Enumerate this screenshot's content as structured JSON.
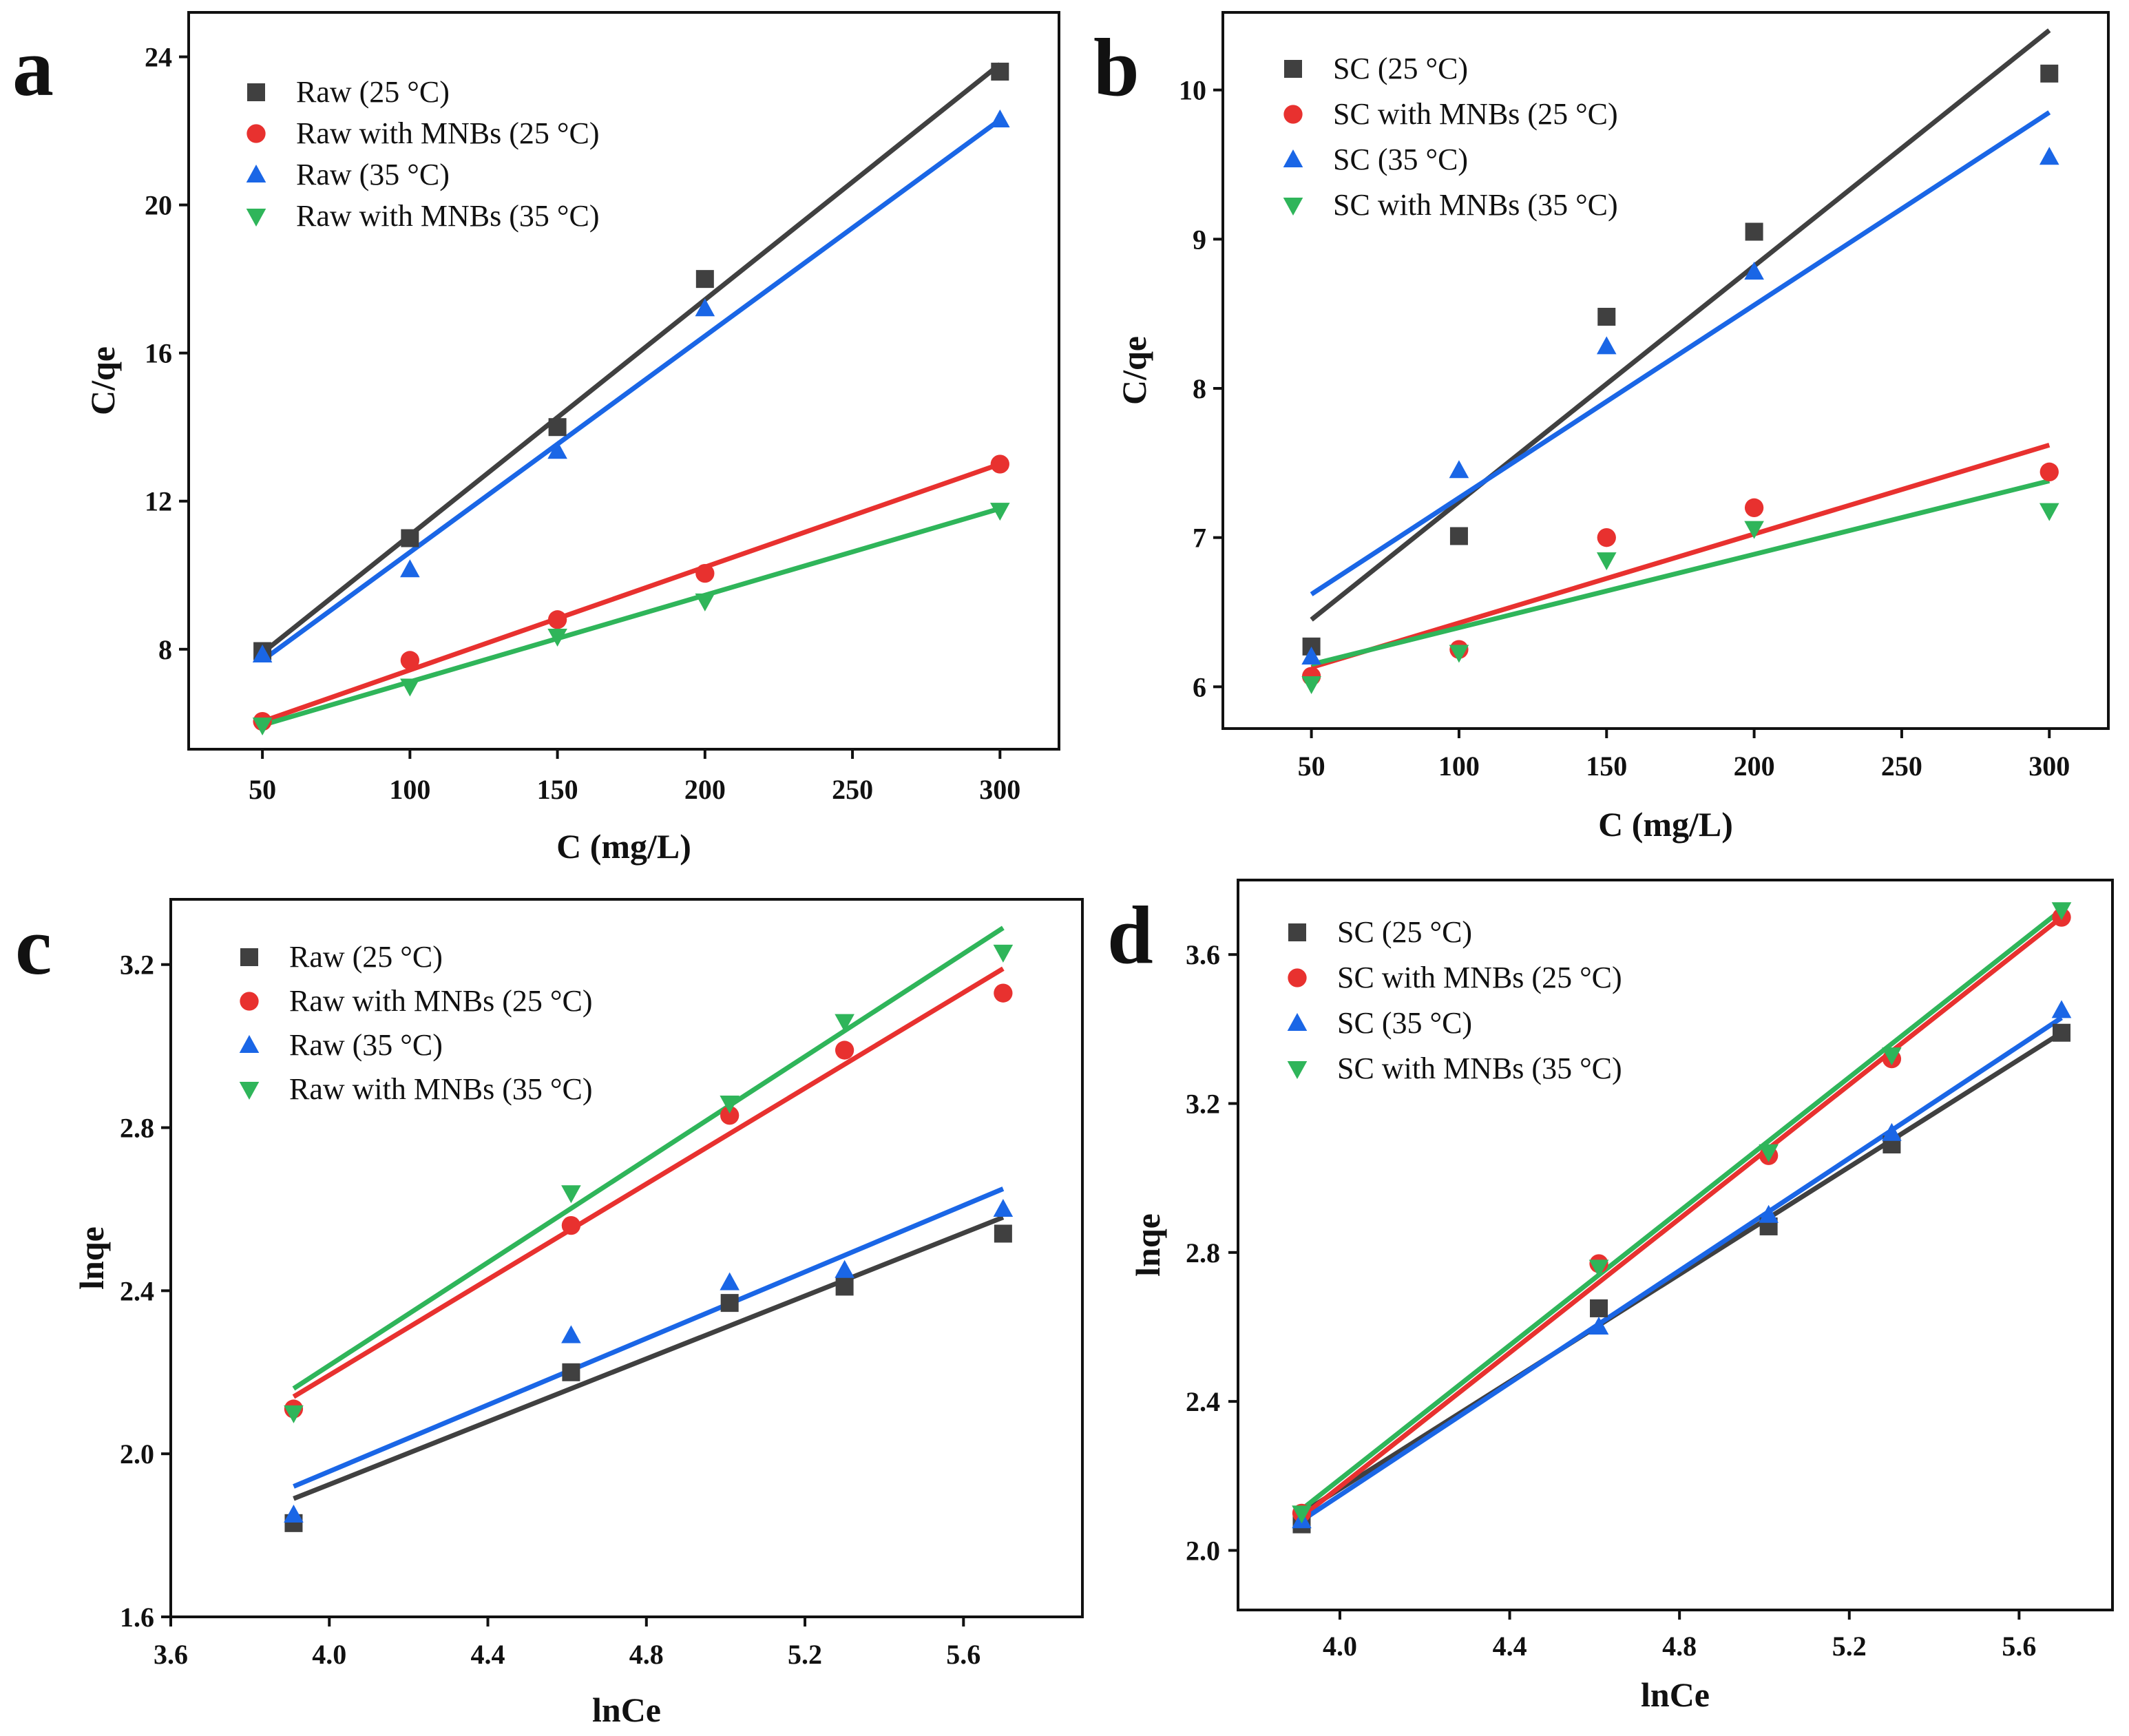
{
  "colors": {
    "black": "#404040",
    "red": "#e8312f",
    "blue": "#1a66e6",
    "green": "#2fb55a"
  },
  "chart_data": [
    {
      "panel": "a",
      "type": "scatter",
      "xlabel": "C (mg/L)",
      "ylabel": "C/qe",
      "xlim": [
        25,
        320
      ],
      "ylim": [
        5.3,
        25.2
      ],
      "xticks": [
        50,
        100,
        150,
        200,
        250,
        300
      ],
      "yticks": [
        8,
        12,
        16,
        20,
        24
      ],
      "xtick_labels": [
        "50",
        "100",
        "150",
        "200",
        "250",
        "300"
      ],
      "ytick_labels": [
        "8",
        "12",
        "16",
        "20",
        "24"
      ],
      "legend_position": "top-left",
      "series": [
        {
          "name": "Raw (25 °C)",
          "color": "black",
          "marker": "square",
          "x": [
            50,
            100,
            150,
            200,
            300
          ],
          "y": [
            7.95,
            11.0,
            14.0,
            18.0,
            23.6
          ],
          "fit": [
            [
              50,
              7.9
            ],
            [
              300,
              23.8
            ]
          ]
        },
        {
          "name": "Raw with MNBs (25 °C)",
          "color": "red",
          "marker": "circle",
          "x": [
            50,
            100,
            150,
            200,
            300
          ],
          "y": [
            6.05,
            7.7,
            8.8,
            10.05,
            13.0
          ],
          "fit": [
            [
              50,
              6.05
            ],
            [
              300,
              13.0
            ]
          ]
        },
        {
          "name": "Raw (35 °C)",
          "color": "blue",
          "marker": "triangle-up",
          "x": [
            50,
            100,
            150,
            200,
            300
          ],
          "y": [
            7.85,
            10.15,
            13.35,
            17.2,
            22.3
          ],
          "fit": [
            [
              50,
              7.7
            ],
            [
              300,
              22.3
            ]
          ]
        },
        {
          "name": "Raw with MNBs (35 °C)",
          "color": "green",
          "marker": "triangle-down",
          "x": [
            50,
            100,
            150,
            200,
            300
          ],
          "y": [
            5.95,
            7.0,
            8.35,
            9.3,
            11.75
          ],
          "fit": [
            [
              50,
              5.95
            ],
            [
              300,
              11.8
            ]
          ]
        }
      ]
    },
    {
      "panel": "b",
      "type": "scatter",
      "xlabel": "C (mg/L)",
      "ylabel": "C/qe",
      "xlim": [
        20,
        320
      ],
      "ylim": [
        5.72,
        10.52
      ],
      "xticks": [
        50,
        100,
        150,
        200,
        250,
        300
      ],
      "yticks": [
        6,
        7,
        8,
        9,
        10
      ],
      "xtick_labels": [
        "50",
        "100",
        "150",
        "200",
        "250",
        "300"
      ],
      "ytick_labels": [
        "6",
        "7",
        "8",
        "9",
        "10"
      ],
      "legend_position": "top-left",
      "series": [
        {
          "name": "SC (25 °C)",
          "color": "black",
          "marker": "square",
          "x": [
            50,
            100,
            150,
            200,
            300
          ],
          "y": [
            6.27,
            7.01,
            8.48,
            9.05,
            10.11
          ],
          "fit": [
            [
              50,
              6.45
            ],
            [
              300,
              10.4
            ]
          ]
        },
        {
          "name": "SC with MNBs (25 °C)",
          "color": "red",
          "marker": "circle",
          "x": [
            50,
            100,
            150,
            200,
            300
          ],
          "y": [
            6.07,
            6.25,
            7.0,
            7.2,
            7.44
          ],
          "fit": [
            [
              50,
              6.13
            ],
            [
              300,
              7.62
            ]
          ]
        },
        {
          "name": "SC (35 °C)",
          "color": "blue",
          "marker": "triangle-up",
          "x": [
            50,
            100,
            150,
            200,
            300
          ],
          "y": [
            6.2,
            7.45,
            8.28,
            8.78,
            9.55
          ],
          "fit": [
            [
              50,
              6.62
            ],
            [
              300,
              9.85
            ]
          ]
        },
        {
          "name": "SC with MNBs (35 °C)",
          "color": "green",
          "marker": "triangle-down",
          "x": [
            50,
            100,
            150,
            200,
            300
          ],
          "y": [
            6.02,
            6.23,
            6.85,
            7.06,
            7.18
          ],
          "fit": [
            [
              50,
              6.15
            ],
            [
              300,
              7.38
            ]
          ]
        }
      ]
    },
    {
      "panel": "c",
      "type": "scatter",
      "xlabel": "lnCe",
      "ylabel": "lnqe",
      "xlim": [
        3.6,
        5.9
      ],
      "ylim": [
        1.6,
        3.36
      ],
      "xticks": [
        3.6,
        4.0,
        4.4,
        4.8,
        5.2,
        5.6
      ],
      "yticks": [
        1.6,
        2.0,
        2.4,
        2.8,
        3.2
      ],
      "xtick_labels": [
        "3.6",
        "4.0",
        "4.4",
        "4.8",
        "5.2",
        "5.6"
      ],
      "ytick_labels": [
        "1.6",
        "2.0",
        "2.4",
        "2.8",
        "3.2"
      ],
      "legend_position": "top-left",
      "series": [
        {
          "name": "Raw (25 °C)",
          "color": "black",
          "marker": "square",
          "x": [
            3.91,
            4.61,
            5.01,
            5.3,
            5.7
          ],
          "y": [
            1.83,
            2.2,
            2.37,
            2.41,
            2.54
          ],
          "fit": [
            [
              3.91,
              1.89
            ],
            [
              5.7,
              2.58
            ]
          ]
        },
        {
          "name": "Raw with MNBs (25 °C)",
          "color": "red",
          "marker": "circle",
          "x": [
            3.91,
            4.61,
            5.01,
            5.3,
            5.7
          ],
          "y": [
            2.11,
            2.56,
            2.83,
            2.99,
            3.13
          ],
          "fit": [
            [
              3.91,
              2.14
            ],
            [
              5.7,
              3.19
            ]
          ]
        },
        {
          "name": "Raw (35 °C)",
          "color": "blue",
          "marker": "triangle-up",
          "x": [
            3.91,
            4.61,
            5.01,
            5.3,
            5.7
          ],
          "y": [
            1.85,
            2.29,
            2.42,
            2.45,
            2.6
          ],
          "fit": [
            [
              3.91,
              1.92
            ],
            [
              5.7,
              2.65
            ]
          ]
        },
        {
          "name": "Raw with MNBs (35 °C)",
          "color": "green",
          "marker": "triangle-down",
          "x": [
            3.91,
            4.61,
            5.01,
            5.3,
            5.7
          ],
          "y": [
            2.1,
            2.64,
            2.86,
            3.06,
            3.23
          ],
          "fit": [
            [
              3.91,
              2.16
            ],
            [
              5.7,
              3.29
            ]
          ]
        }
      ]
    },
    {
      "panel": "d",
      "type": "scatter",
      "xlabel": "lnCe",
      "ylabel": "lnqe",
      "xlim": [
        3.76,
        5.82
      ],
      "ylim": [
        1.84,
        3.8
      ],
      "xticks": [
        4.0,
        4.4,
        4.8,
        5.2,
        5.6
      ],
      "yticks": [
        2.0,
        2.4,
        2.8,
        3.2,
        3.6
      ],
      "xtick_labels": [
        "4.0",
        "4.4",
        "4.8",
        "5.2",
        "5.6"
      ],
      "ytick_labels": [
        "2.0",
        "2.4",
        "2.8",
        "3.2",
        "3.6"
      ],
      "legend_position": "top-left",
      "series": [
        {
          "name": "SC (25 °C)",
          "color": "black",
          "marker": "square",
          "x": [
            3.91,
            4.61,
            5.01,
            5.3,
            5.7
          ],
          "y": [
            2.07,
            2.65,
            2.87,
            3.09,
            3.39
          ],
          "fit": [
            [
              3.91,
              2.1
            ],
            [
              5.7,
              3.39
            ]
          ]
        },
        {
          "name": "SC with MNBs (25 °C)",
          "color": "red",
          "marker": "circle",
          "x": [
            3.91,
            4.61,
            5.01,
            5.3,
            5.7
          ],
          "y": [
            2.1,
            2.77,
            3.06,
            3.32,
            3.7
          ],
          "fit": [
            [
              3.91,
              2.09
            ],
            [
              5.7,
              3.7
            ]
          ]
        },
        {
          "name": "SC (35 °C)",
          "color": "blue",
          "marker": "triangle-up",
          "x": [
            3.91,
            4.61,
            5.01,
            5.3,
            5.7
          ],
          "y": [
            2.08,
            2.6,
            2.9,
            3.12,
            3.45
          ],
          "fit": [
            [
              3.91,
              2.08
            ],
            [
              5.7,
              3.43
            ]
          ]
        },
        {
          "name": "SC with MNBs (35 °C)",
          "color": "green",
          "marker": "triangle-down",
          "x": [
            3.91,
            4.61,
            5.01,
            5.3,
            5.7
          ],
          "y": [
            2.1,
            2.76,
            3.07,
            3.33,
            3.72
          ],
          "fit": [
            [
              3.91,
              2.11
            ],
            [
              5.7,
              3.72
            ]
          ]
        }
      ]
    }
  ]
}
